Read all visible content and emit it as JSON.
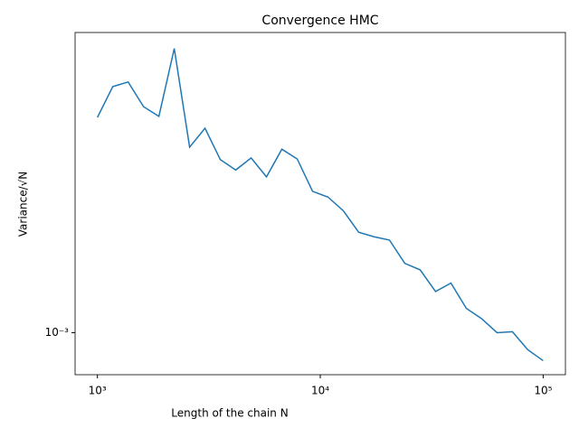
{
  "chart_data": {
    "type": "line",
    "title": "Convergence HMC",
    "x_label": "Length of the chain N",
    "y_label": "Variance/√N",
    "x": [
      1000,
      1172.1,
      1373.8,
      1610.3,
      1887.4,
      2212.2,
      2592.9,
      3039.2,
      3562.2,
      4175.3,
      4893.9,
      5736.2,
      6723.4,
      7880.5,
      9236.7,
      10826.4,
      12689.7,
      14873.5,
      17433.3,
      20433.6,
      23950.3,
      28072.2,
      32903.4,
      38566.2,
      45203.5,
      52983.2,
      62101.7,
      72789.5,
      85316.8,
      100000
    ],
    "series": [
      {
        "color": "#1f77b4",
        "values": [
          0.00501,
          0.00631,
          0.00653,
          0.00543,
          0.00505,
          0.00839,
          0.00401,
          0.00462,
          0.00365,
          0.00338,
          0.0037,
          0.00321,
          0.00395,
          0.00367,
          0.00288,
          0.00276,
          0.00249,
          0.00212,
          0.00205,
          0.002,
          0.00168,
          0.0016,
          0.00136,
          0.00145,
          0.0012,
          0.00111,
          0.001,
          0.001007,
          0.00088,
          0.000811
        ]
      }
    ],
    "x_scale": "log",
    "y_scale": "log",
    "xlim": [
      794,
      125893
    ],
    "ylim": [
      0.00073,
      0.00946
    ],
    "xticks": [
      {
        "value": 1000,
        "label": "10³"
      },
      {
        "value": 10000,
        "label": "10⁴"
      },
      {
        "value": 100000,
        "label": "10⁵"
      }
    ],
    "yticks": [
      {
        "value": 0.001,
        "label": "10⁻³"
      }
    ]
  }
}
